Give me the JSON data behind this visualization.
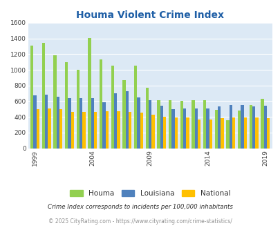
{
  "title": "Houma Violent Crime Index",
  "years": [
    1999,
    2000,
    2001,
    2002,
    2003,
    2004,
    2005,
    2006,
    2007,
    2008,
    2009,
    2010,
    2011,
    2012,
    2013,
    2014,
    2015,
    2016,
    2017,
    2018,
    2019
  ],
  "houma": [
    1310,
    1340,
    1190,
    1100,
    1000,
    1410,
    1130,
    1050,
    870,
    1050,
    770,
    610,
    610,
    600,
    610,
    610,
    490,
    360,
    480,
    550,
    630
  ],
  "louisiana": [
    670,
    685,
    655,
    635,
    635,
    640,
    590,
    700,
    730,
    650,
    615,
    545,
    495,
    510,
    505,
    510,
    530,
    555,
    550,
    530,
    545
  ],
  "national": [
    500,
    505,
    495,
    465,
    465,
    465,
    470,
    475,
    465,
    455,
    430,
    400,
    390,
    390,
    370,
    370,
    380,
    395,
    395,
    390,
    385
  ],
  "colors": {
    "houma": "#92d050",
    "louisiana": "#4f81bd",
    "national": "#ffc000"
  },
  "ylim": [
    0,
    1600
  ],
  "yticks": [
    0,
    200,
    400,
    600,
    800,
    1000,
    1200,
    1400,
    1600
  ],
  "xlabel_ticks": [
    1999,
    2004,
    2009,
    2014,
    2019
  ],
  "bg_color": "#dce9f5",
  "legend_labels": [
    "Houma",
    "Louisiana",
    "National"
  ],
  "footnote1": "Crime Index corresponds to incidents per 100,000 inhabitants",
  "footnote2": "© 2025 CityRating.com - https://www.cityrating.com/crime-statistics/",
  "title_color": "#1f5fa6",
  "footnote1_color": "#303030",
  "footnote2_color": "#909090"
}
